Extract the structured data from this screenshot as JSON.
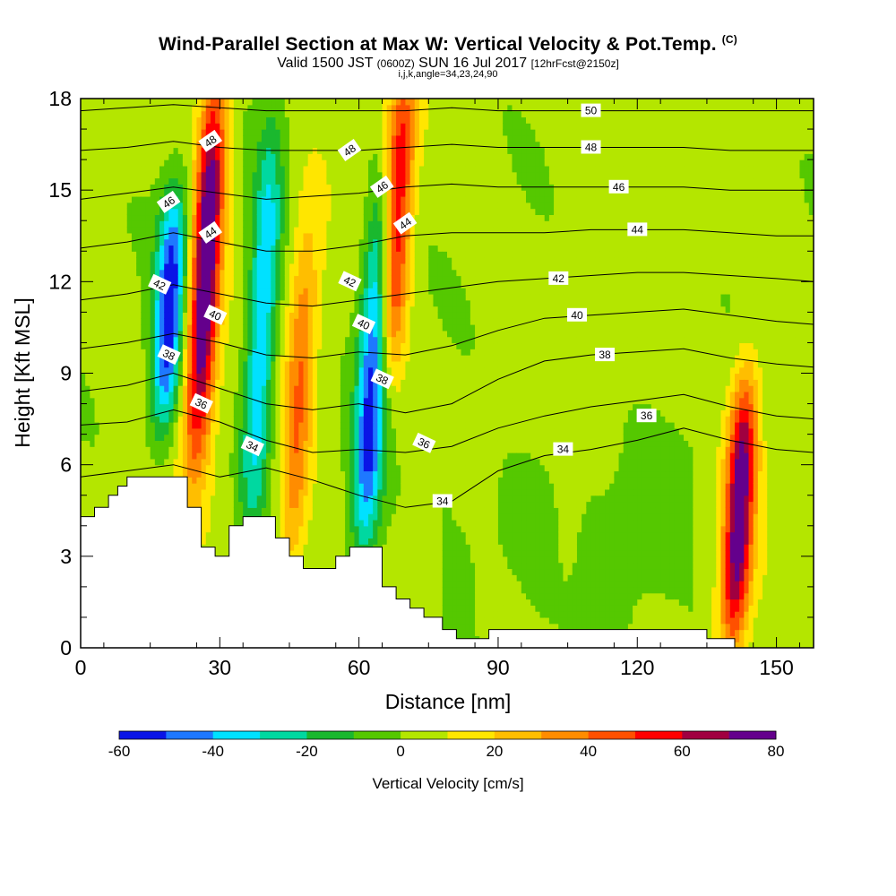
{
  "title": {
    "main": "Wind-Parallel Section at Max W: Vertical Velocity & Pot.Temp.",
    "corner_tag": "(C)",
    "valid_prefix": "Valid 1500 JST",
    "valid_utc": "(0600Z)",
    "valid_date": "SUN 16 Jul 2017",
    "forecast": "[12hrFcst@2150z]",
    "params": "i,j,k,angle=34,23,24,90"
  },
  "chart_data": {
    "type": "heatmap",
    "xlabel": "Distance [nm]",
    "ylabel": "Height [Kft MSL]",
    "xlim": [
      0,
      158
    ],
    "ylim": [
      0,
      18
    ],
    "xticks": [
      0,
      30,
      60,
      90,
      120,
      150
    ],
    "yticks": [
      0,
      3,
      6,
      9,
      12,
      15,
      18
    ],
    "colorbar": {
      "label": "Vertical Velocity [cm/s]",
      "levels": [
        -60,
        -50,
        -40,
        -30,
        -20,
        -10,
        0,
        10,
        20,
        30,
        40,
        50,
        60,
        70,
        80
      ],
      "tick_labels": [
        -60,
        -40,
        -20,
        0,
        20,
        40,
        60,
        80
      ],
      "colors": [
        "#0a14e6",
        "#1e78ff",
        "#00e1ff",
        "#00d8a0",
        "#1ab82e",
        "#55c800",
        "#b4e600",
        "#ffe600",
        "#ffbe00",
        "#ff8c00",
        "#ff5000",
        "#ff0000",
        "#a00040",
        "#64008c"
      ]
    },
    "updraft_cores": [
      {
        "x": 27,
        "ybottom": 7,
        "ytop": 18,
        "peak": 80
      },
      {
        "x": 47,
        "ybottom": 3,
        "ytop": 13,
        "peak": 35
      },
      {
        "x": 68,
        "ybottom": 10,
        "ytop": 18,
        "peak": 60
      },
      {
        "x": 142,
        "ybottom": 1,
        "ytop": 8,
        "peak": 75
      }
    ],
    "downdraft_cores": [
      {
        "x": 19,
        "ybottom": 8,
        "ytop": 14,
        "peak": -60
      },
      {
        "x": 39,
        "ybottom": 5,
        "ytop": 16,
        "peak": -45
      },
      {
        "x": 63,
        "ybottom": 4,
        "ytop": 14,
        "peak": -60
      }
    ],
    "terrain": {
      "x": [
        0,
        3,
        3,
        6,
        6,
        8,
        8,
        10,
        10,
        23,
        23,
        26,
        26,
        29,
        29,
        32,
        32,
        35,
        35,
        42,
        42,
        45,
        45,
        48,
        48,
        55,
        55,
        58,
        58,
        65,
        65,
        68,
        68,
        71,
        71,
        74,
        74,
        78,
        78,
        81,
        81,
        88,
        88,
        135,
        135,
        141,
        141,
        155,
        155,
        158
      ],
      "y": [
        4.3,
        4.3,
        4.6,
        4.6,
        5,
        5,
        5.3,
        5.3,
        5.6,
        5.6,
        4.6,
        4.6,
        3.3,
        3.3,
        3,
        3,
        4,
        4,
        4.3,
        4.3,
        3.6,
        3.6,
        3,
        3,
        2.6,
        2.6,
        3,
        3,
        3.3,
        3.3,
        2,
        2,
        1.6,
        1.6,
        1.3,
        1.3,
        1,
        1,
        0.6,
        0.6,
        0.3,
        0.3,
        0.6,
        0.6,
        0.3,
        0.3,
        0,
        0,
        0,
        0
      ]
    },
    "theta_contours": {
      "x": [
        0,
        10,
        20,
        30,
        40,
        50,
        60,
        70,
        80,
        90,
        100,
        110,
        120,
        130,
        140,
        150,
        158
      ],
      "levels": [
        34,
        36,
        38,
        40,
        42,
        44,
        46,
        48,
        50
      ],
      "heights": [
        [
          5.6,
          5.8,
          6.0,
          5.6,
          5.9,
          5.5,
          5.0,
          4.6,
          4.8,
          5.8,
          6.3,
          6.5,
          6.8,
          7.2,
          6.8,
          6.5,
          6.4
        ],
        [
          7.3,
          7.4,
          7.8,
          7.4,
          6.8,
          6.4,
          6.5,
          6.4,
          6.6,
          7.2,
          7.6,
          7.9,
          8.1,
          8.3,
          7.9,
          7.6,
          7.5
        ],
        [
          8.4,
          8.6,
          9.0,
          8.5,
          8.0,
          7.8,
          8.0,
          7.7,
          8.0,
          8.8,
          9.4,
          9.6,
          9.7,
          9.8,
          9.5,
          9.3,
          9.2
        ],
        [
          9.8,
          10.0,
          10.3,
          10.0,
          9.6,
          9.5,
          9.7,
          9.6,
          9.9,
          10.4,
          10.8,
          10.9,
          11.0,
          11.1,
          10.9,
          10.7,
          10.6
        ],
        [
          11.4,
          11.6,
          11.9,
          11.6,
          11.3,
          11.2,
          11.4,
          11.6,
          11.8,
          12.0,
          12.1,
          12.2,
          12.3,
          12.3,
          12.2,
          12.1,
          12.0
        ],
        [
          13.1,
          13.3,
          13.6,
          13.3,
          13.0,
          13.0,
          13.2,
          13.5,
          13.6,
          13.6,
          13.6,
          13.7,
          13.7,
          13.7,
          13.6,
          13.5,
          13.5
        ],
        [
          14.7,
          14.9,
          15.1,
          14.9,
          14.7,
          14.8,
          14.9,
          15.1,
          15.2,
          15.1,
          15.1,
          15.1,
          15.1,
          15.1,
          15.0,
          15.0,
          15.0
        ],
        [
          16.3,
          16.4,
          16.6,
          16.4,
          16.3,
          16.3,
          16.3,
          16.4,
          16.5,
          16.4,
          16.4,
          16.4,
          16.4,
          16.4,
          16.3,
          16.3,
          16.3
        ],
        [
          17.6,
          17.7,
          17.8,
          17.7,
          17.6,
          17.6,
          17.6,
          17.6,
          17.7,
          17.6,
          17.6,
          17.6,
          17.6,
          17.6,
          17.6,
          17.6,
          17.6
        ]
      ],
      "labels": [
        {
          "value": "34",
          "x": 37,
          "y": 6.6
        },
        {
          "value": "34",
          "x": 78,
          "y": 4.8
        },
        {
          "value": "34",
          "x": 104,
          "y": 6.5
        },
        {
          "value": "36",
          "x": 26,
          "y": 8.0
        },
        {
          "value": "36",
          "x": 74,
          "y": 6.7
        },
        {
          "value": "36",
          "x": 122,
          "y": 7.6
        },
        {
          "value": "38",
          "x": 19,
          "y": 9.6
        },
        {
          "value": "38",
          "x": 65,
          "y": 8.8
        },
        {
          "value": "38",
          "x": 113,
          "y": 9.6
        },
        {
          "value": "40",
          "x": 29,
          "y": 10.9
        },
        {
          "value": "40",
          "x": 61,
          "y": 10.6
        },
        {
          "value": "40",
          "x": 107,
          "y": 10.9
        },
        {
          "value": "42",
          "x": 17,
          "y": 11.9
        },
        {
          "value": "42",
          "x": 58,
          "y": 12.0
        },
        {
          "value": "42",
          "x": 103,
          "y": 12.1
        },
        {
          "value": "44",
          "x": 28,
          "y": 13.6
        },
        {
          "value": "44",
          "x": 70,
          "y": 13.9
        },
        {
          "value": "44",
          "x": 120,
          "y": 13.7
        },
        {
          "value": "46",
          "x": 19,
          "y": 14.6
        },
        {
          "value": "46",
          "x": 65,
          "y": 15.1
        },
        {
          "value": "46",
          "x": 116,
          "y": 15.1
        },
        {
          "value": "48",
          "x": 28,
          "y": 16.6
        },
        {
          "value": "48",
          "x": 58,
          "y": 16.3
        },
        {
          "value": "48",
          "x": 110,
          "y": 16.4
        },
        {
          "value": "50",
          "x": 110,
          "y": 17.6
        }
      ]
    }
  }
}
